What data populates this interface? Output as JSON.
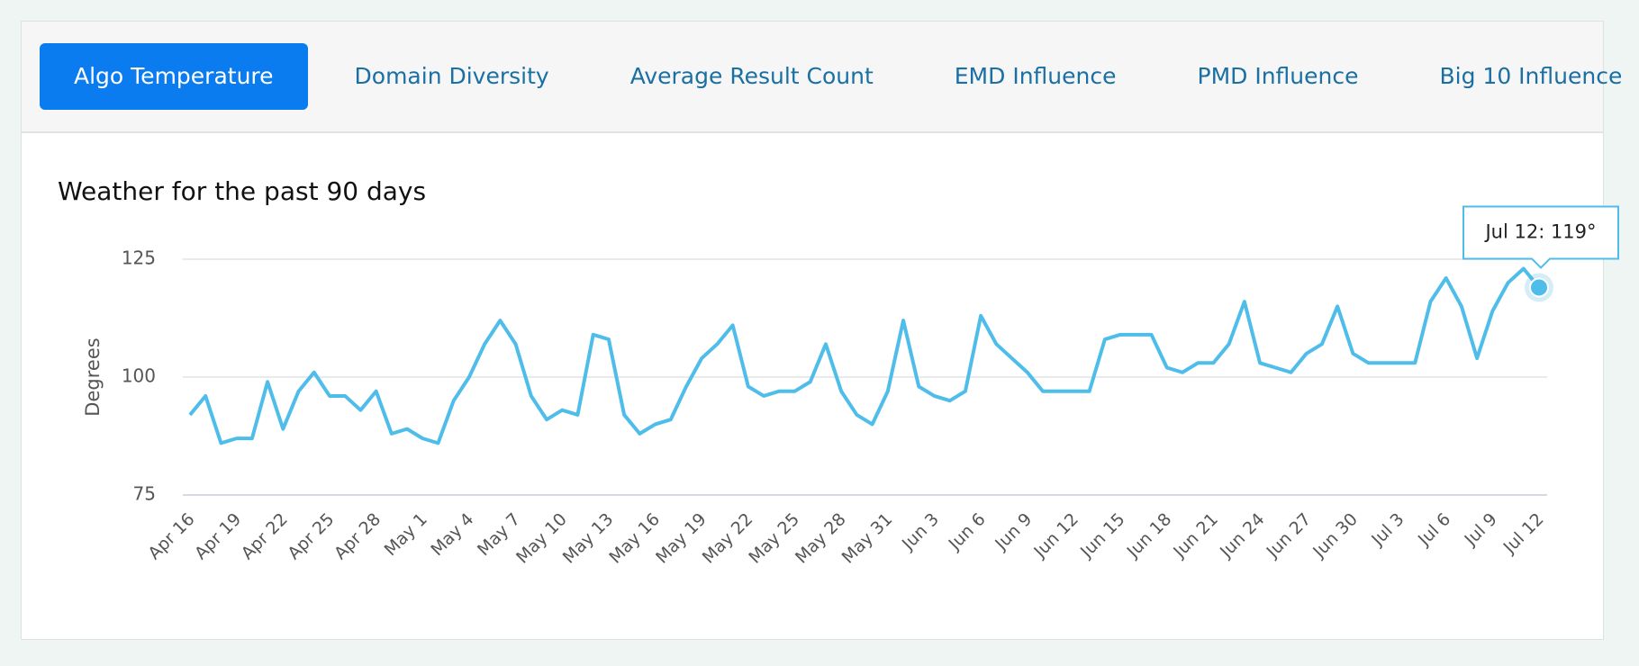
{
  "tabs": {
    "items": [
      "Algo Temperature",
      "Domain Diversity",
      "Average Result Count",
      "EMD Influence",
      "PMD Influence",
      "Big 10 Influence"
    ],
    "active": 0
  },
  "chart_data": {
    "type": "line",
    "title": "Weather for the past 90 days",
    "y_label": "Degrees",
    "categories": [
      "Apr 16",
      null,
      null,
      "Apr 19",
      null,
      null,
      "Apr 22",
      null,
      null,
      "Apr 25",
      null,
      null,
      "Apr 28",
      null,
      null,
      "May 1",
      null,
      null,
      "May 4",
      null,
      null,
      "May 7",
      null,
      null,
      "May 10",
      null,
      null,
      "May 13",
      null,
      null,
      "May 16",
      null,
      null,
      "May 19",
      null,
      null,
      "May 22",
      null,
      null,
      "May 25",
      null,
      null,
      "May 28",
      null,
      null,
      "May 31",
      null,
      null,
      "Jun 3",
      null,
      null,
      "Jun 6",
      null,
      null,
      "Jun 9",
      null,
      null,
      "Jun 12",
      null,
      null,
      "Jun 15",
      null,
      null,
      "Jun 18",
      null,
      null,
      "Jun 21",
      null,
      null,
      "Jun 24",
      null,
      null,
      "Jun 27",
      null,
      null,
      "Jun 30",
      null,
      null,
      "Jul 3",
      null,
      null,
      "Jul 6",
      null,
      null,
      "Jul 9",
      null,
      null,
      "Jul 12"
    ],
    "series": [
      {
        "name": "Degrees",
        "color": "#4fbde9",
        "values": [
          92,
          96,
          86,
          87,
          87,
          99,
          89,
          97,
          101,
          96,
          96,
          93,
          97,
          88,
          89,
          87,
          86,
          95,
          100,
          107,
          112,
          107,
          96,
          91,
          93,
          92,
          109,
          108,
          92,
          88,
          90,
          91,
          98,
          104,
          107,
          111,
          98,
          96,
          97,
          97,
          99,
          107,
          97,
          92,
          90,
          97,
          112,
          98,
          96,
          95,
          97,
          113,
          107,
          104,
          101,
          97,
          97,
          97,
          97,
          108,
          109,
          109,
          109,
          102,
          101,
          103,
          103,
          107,
          116,
          103,
          102,
          101,
          105,
          107,
          115,
          105,
          103,
          103,
          103,
          103,
          116,
          121,
          115,
          104,
          114,
          120,
          123,
          119
        ]
      }
    ],
    "ylim": [
      75,
      125
    ],
    "yticks": [
      75,
      100,
      125
    ],
    "grid": true,
    "tooltip": "Jul 12: 119°"
  }
}
